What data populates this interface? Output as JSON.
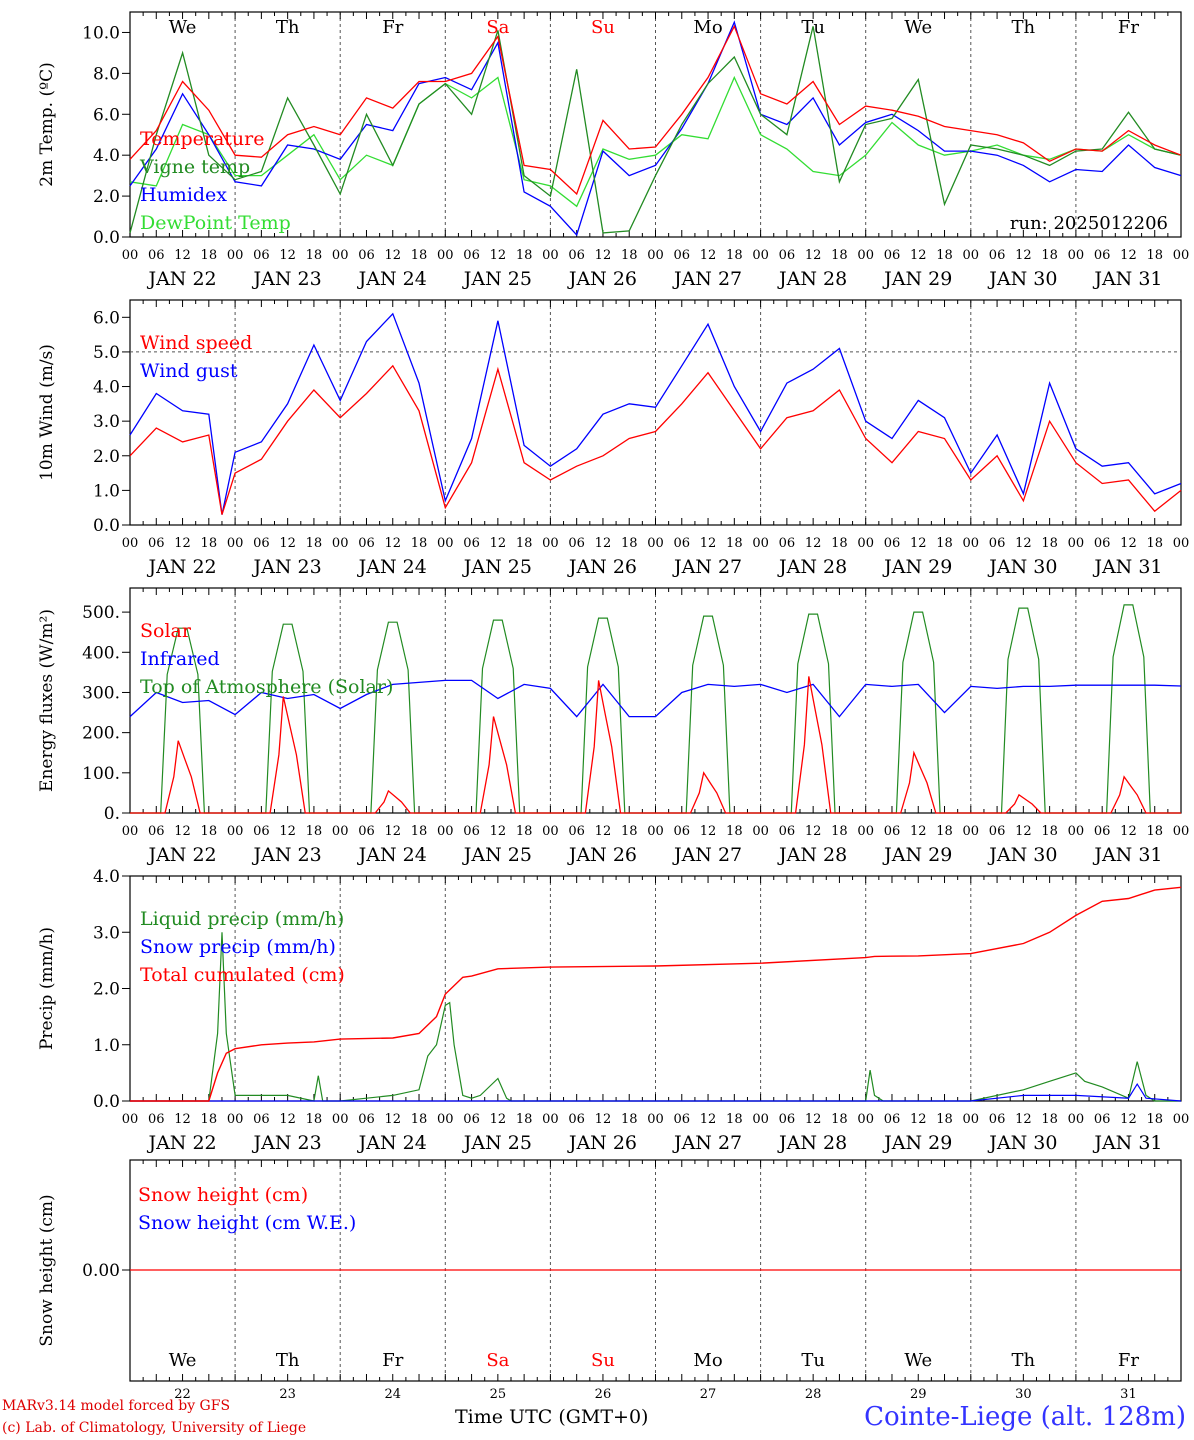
{
  "footer": {
    "model": "MARv3.14 model forced by GFS",
    "credit": "(c) Lab. of Climatology, University of Liege",
    "time_axis": "Time UTC (GMT+0)",
    "station": "Cointe-Liege (alt. 128m)"
  },
  "colors": {
    "red": "#ff0000",
    "green": "#228b22",
    "blue": "#0000ff",
    "lime": "#33dd33",
    "grid": "#555555"
  },
  "chart_data": [
    {
      "type": "line",
      "ylabel": "2m Temp. (ºC)",
      "ylim": [
        0,
        11
      ],
      "yticks": [
        "0.0",
        "2.0",
        "4.0",
        "6.0",
        "8.0",
        "10.0"
      ],
      "day_names": [
        "We",
        "Th",
        "Fr",
        "Sa",
        "Su",
        "Mo",
        "Tu",
        "We",
        "Th",
        "Fr"
      ],
      "weekend_days": [
        3,
        4
      ],
      "dates": [
        "JAN 22",
        "JAN 23",
        "JAN 24",
        "JAN 25",
        "JAN 26",
        "JAN 27",
        "JAN 28",
        "JAN 29",
        "JAN 30",
        "JAN 31"
      ],
      "hour_ticks": [
        "00",
        "06",
        "12",
        "18"
      ],
      "run_label": "run: 2025012206",
      "series": [
        {
          "name": "Temperature",
          "color": "#ff0000",
          "x": [
            0,
            6,
            12,
            18,
            24,
            30,
            36,
            42,
            48,
            54,
            60,
            66,
            72,
            78,
            84,
            90,
            96,
            102,
            108,
            114,
            120,
            126,
            132,
            138,
            144,
            150,
            156,
            162,
            168,
            174,
            180,
            186,
            192,
            198,
            204,
            210,
            216,
            222,
            228,
            234,
            240
          ],
          "values": [
            3.8,
            5.2,
            7.6,
            6.2,
            4.0,
            3.9,
            5.0,
            5.4,
            5.0,
            6.8,
            6.3,
            7.6,
            7.6,
            8.0,
            9.8,
            3.5,
            3.3,
            2.1,
            5.7,
            4.3,
            4.4,
            6.0,
            7.8,
            10.3,
            7.0,
            6.5,
            7.6,
            5.5,
            6.4,
            6.2,
            5.9,
            5.4,
            5.2,
            5.0,
            4.6,
            3.7,
            4.3,
            4.2,
            5.2,
            4.5,
            4.0
          ]
        },
        {
          "name": "Vigne temp",
          "color": "#228b22",
          "x": [
            0,
            6,
            12,
            18,
            24,
            30,
            36,
            42,
            48,
            54,
            60,
            66,
            72,
            78,
            84,
            90,
            96,
            102,
            108,
            114,
            120,
            126,
            132,
            138,
            144,
            150,
            156,
            162,
            168,
            174,
            180,
            186,
            192,
            198,
            204,
            210,
            216,
            222,
            228,
            234,
            240
          ],
          "values": [
            0.2,
            5.0,
            9.0,
            4.0,
            2.8,
            3.2,
            6.8,
            4.5,
            2.1,
            6.0,
            3.5,
            6.5,
            7.5,
            6.0,
            10.1,
            3.0,
            2.0,
            8.2,
            0.2,
            0.3,
            3.0,
            5.5,
            7.5,
            8.8,
            6.0,
            5.0,
            10.3,
            2.7,
            5.5,
            5.8,
            7.7,
            1.6,
            4.5,
            4.3,
            4.0,
            3.5,
            4.2,
            4.3,
            6.1,
            4.3,
            4.0
          ]
        },
        {
          "name": "Humidex",
          "color": "#0000ff",
          "x": [
            0,
            6,
            12,
            18,
            24,
            30,
            36,
            42,
            48,
            54,
            60,
            66,
            72,
            78,
            84,
            90,
            96,
            102,
            108,
            114,
            120,
            126,
            132,
            138,
            144,
            150,
            156,
            162,
            168,
            174,
            180,
            186,
            192,
            198,
            204,
            210,
            216,
            222,
            228,
            234,
            240
          ],
          "values": [
            2.5,
            4.3,
            7.0,
            5.0,
            2.7,
            2.5,
            4.5,
            4.3,
            3.8,
            5.5,
            5.2,
            7.5,
            7.8,
            7.2,
            9.5,
            2.2,
            1.5,
            0.1,
            4.2,
            3.0,
            3.5,
            5.3,
            7.5,
            10.5,
            6.0,
            5.5,
            6.8,
            4.5,
            5.6,
            6.0,
            5.2,
            4.2,
            4.2,
            4.0,
            3.5,
            2.7,
            3.3,
            3.2,
            4.5,
            3.4,
            3.0
          ]
        },
        {
          "name": "DewPoint Temp",
          "color": "#33dd33",
          "x": [
            0,
            6,
            12,
            18,
            24,
            30,
            36,
            42,
            48,
            54,
            60,
            66,
            72,
            78,
            84,
            90,
            96,
            102,
            108,
            114,
            120,
            126,
            132,
            138,
            144,
            150,
            156,
            162,
            168,
            174,
            180,
            186,
            192,
            198,
            204,
            210,
            216,
            222,
            228,
            234,
            240
          ],
          "values": [
            2.7,
            2.5,
            5.5,
            5.0,
            3.0,
            3.0,
            4.0,
            5.0,
            2.8,
            4.0,
            3.5,
            6.5,
            7.5,
            6.8,
            7.8,
            2.8,
            2.5,
            1.5,
            4.3,
            3.8,
            4.0,
            5.0,
            4.8,
            7.8,
            5.0,
            4.3,
            3.2,
            3.0,
            4.0,
            5.6,
            4.5,
            4.0,
            4.2,
            4.5,
            4.0,
            3.8,
            4.3,
            4.2,
            5.0,
            4.3,
            4.0
          ]
        }
      ]
    },
    {
      "type": "line",
      "ylabel": "10m Wind (m/s)",
      "ylim": [
        0,
        6.5
      ],
      "yticks": [
        "0.0",
        "1.0",
        "2.0",
        "3.0",
        "4.0",
        "5.0",
        "6.0"
      ],
      "dates": [
        "JAN 22",
        "JAN 23",
        "JAN 24",
        "JAN 25",
        "JAN 26",
        "JAN 27",
        "JAN 28",
        "JAN 29",
        "JAN 30",
        "JAN 31"
      ],
      "hour_ticks": [
        "00",
        "06",
        "12",
        "18"
      ],
      "hline": 5.0,
      "series": [
        {
          "name": "Wind speed",
          "color": "#ff0000",
          "x": [
            0,
            6,
            12,
            18,
            21,
            24,
            30,
            36,
            42,
            48,
            54,
            60,
            66,
            72,
            78,
            84,
            90,
            96,
            102,
            108,
            114,
            120,
            126,
            132,
            138,
            144,
            150,
            156,
            162,
            168,
            174,
            180,
            186,
            192,
            198,
            204,
            210,
            216,
            222,
            228,
            234,
            240
          ],
          "values": [
            2.0,
            2.8,
            2.4,
            2.6,
            0.3,
            1.5,
            1.9,
            3.0,
            3.9,
            3.1,
            3.8,
            4.6,
            3.3,
            0.5,
            1.8,
            4.5,
            1.8,
            1.3,
            1.7,
            2.0,
            2.5,
            2.7,
            3.5,
            4.4,
            3.3,
            2.2,
            3.1,
            3.3,
            3.9,
            2.5,
            1.8,
            2.7,
            2.5,
            1.3,
            2.0,
            0.7,
            3.0,
            1.8,
            1.2,
            1.3,
            0.4,
            1.0
          ]
        },
        {
          "name": "Wind gust",
          "color": "#0000ff",
          "x": [
            0,
            6,
            12,
            18,
            21,
            24,
            30,
            36,
            42,
            48,
            54,
            60,
            66,
            72,
            78,
            84,
            90,
            96,
            102,
            108,
            114,
            120,
            126,
            132,
            138,
            144,
            150,
            156,
            162,
            168,
            174,
            180,
            186,
            192,
            198,
            204,
            210,
            216,
            222,
            228,
            234,
            240
          ],
          "values": [
            2.6,
            3.8,
            3.3,
            3.2,
            0.3,
            2.1,
            2.4,
            3.5,
            5.2,
            3.6,
            5.3,
            6.1,
            4.1,
            0.7,
            2.5,
            5.9,
            2.3,
            1.7,
            2.2,
            3.2,
            3.5,
            3.4,
            4.6,
            5.8,
            4.0,
            2.7,
            4.1,
            4.5,
            5.1,
            3.0,
            2.5,
            3.6,
            3.1,
            1.5,
            2.6,
            0.9,
            4.1,
            2.2,
            1.7,
            1.8,
            0.9,
            1.2
          ]
        }
      ]
    },
    {
      "type": "line",
      "ylabel": "Energy fluxes (W/m²)",
      "ylim": [
        0,
        560
      ],
      "yticks": [
        "0.",
        "100.",
        "200.",
        "300.",
        "400.",
        "500."
      ],
      "dates": [
        "JAN 22",
        "JAN 23",
        "JAN 24",
        "JAN 25",
        "JAN 26",
        "JAN 27",
        "JAN 28",
        "JAN 29",
        "JAN 30",
        "JAN 31"
      ],
      "hour_ticks": [
        "00",
        "06",
        "12",
        "18"
      ],
      "top_of_atmosphere_peaks": [
        460,
        470,
        475,
        480,
        485,
        490,
        495,
        500,
        510,
        518
      ],
      "solar_peaks": [
        180,
        290,
        55,
        240,
        330,
        100,
        340,
        150,
        45,
        90
      ],
      "series": [
        {
          "name": "Solar",
          "color": "#ff0000"
        },
        {
          "name": "Infrared",
          "color": "#0000ff",
          "x": [
            0,
            6,
            12,
            18,
            24,
            30,
            36,
            42,
            48,
            54,
            60,
            66,
            72,
            78,
            84,
            90,
            96,
            102,
            108,
            114,
            120,
            126,
            132,
            138,
            144,
            150,
            156,
            162,
            168,
            174,
            180,
            186,
            192,
            198,
            204,
            210,
            216,
            222,
            228,
            234,
            240
          ],
          "values": [
            240,
            300,
            275,
            280,
            245,
            300,
            285,
            295,
            260,
            295,
            320,
            325,
            330,
            330,
            285,
            320,
            310,
            240,
            320,
            240,
            240,
            300,
            320,
            315,
            320,
            300,
            320,
            240,
            320,
            315,
            320,
            250,
            315,
            310,
            315,
            315,
            318,
            318,
            318,
            318,
            316
          ]
        },
        {
          "name": "Top of Atmosphere (Solar)",
          "color": "#228b22"
        }
      ]
    },
    {
      "type": "line",
      "ylabel": "Precip (mm/h)",
      "ylim": [
        0,
        4.0
      ],
      "yticks": [
        "0.0",
        "1.0",
        "2.0",
        "3.0",
        "4.0"
      ],
      "dates": [
        "JAN 22",
        "JAN 23",
        "JAN 24",
        "JAN 25",
        "JAN 26",
        "JAN 27",
        "JAN 28",
        "JAN 29",
        "JAN 30",
        "JAN 31"
      ],
      "hour_ticks": [
        "00",
        "06",
        "12",
        "18"
      ],
      "series": [
        {
          "name": "Liquid precip (mm/h)",
          "color": "#228b22",
          "x": [
            0,
            12,
            18,
            20,
            21,
            22,
            24,
            30,
            36,
            42,
            43,
            44,
            48,
            54,
            60,
            66,
            68,
            70,
            72,
            73,
            74,
            76,
            78,
            80,
            84,
            86,
            87,
            88,
            96,
            108,
            120,
            132,
            144,
            168,
            169,
            170,
            172,
            180,
            192,
            204,
            210,
            216,
            218,
            222,
            228,
            230,
            232,
            234,
            240
          ],
          "values": [
            0,
            0,
            0,
            1.2,
            3.0,
            1.2,
            0.1,
            0.1,
            0.1,
            0,
            0.45,
            0,
            0,
            0.05,
            0.1,
            0.2,
            0.8,
            1.0,
            1.7,
            1.75,
            1.0,
            0.1,
            0.05,
            0.1,
            0.4,
            0.05,
            0,
            0,
            0,
            0,
            0,
            0,
            0,
            0,
            0.55,
            0.1,
            0,
            0,
            0,
            0.2,
            0.35,
            0.5,
            0.35,
            0.25,
            0.05,
            0.7,
            0.1,
            0,
            0
          ]
        },
        {
          "name": "Snow precip (mm/h)",
          "color": "#0000ff",
          "x": [
            0,
            24,
            48,
            72,
            96,
            120,
            144,
            168,
            192,
            204,
            216,
            228,
            230,
            232,
            240
          ],
          "values": [
            0,
            0,
            0,
            0,
            0,
            0,
            0,
            0,
            0,
            0.1,
            0.1,
            0.05,
            0.3,
            0.05,
            0
          ]
        },
        {
          "name": "Total cumulated (cm)",
          "color": "#ff0000",
          "x": [
            0,
            18,
            20,
            22,
            24,
            30,
            36,
            42,
            48,
            60,
            66,
            70,
            72,
            76,
            78,
            84,
            96,
            120,
            144,
            168,
            170,
            180,
            192,
            204,
            210,
            216,
            222,
            228,
            234,
            240
          ],
          "values": [
            0,
            0,
            0.5,
            0.85,
            0.93,
            1.0,
            1.03,
            1.05,
            1.1,
            1.12,
            1.2,
            1.5,
            1.9,
            2.2,
            2.22,
            2.35,
            2.38,
            2.4,
            2.45,
            2.55,
            2.57,
            2.58,
            2.62,
            2.8,
            3.0,
            3.3,
            3.55,
            3.6,
            3.75,
            3.8
          ]
        }
      ]
    },
    {
      "type": "line",
      "ylabel": "Snow height (cm)",
      "yticks": [
        "0.00"
      ],
      "day_names": [
        "We",
        "Th",
        "Fr",
        "Sa",
        "Su",
        "Mo",
        "Tu",
        "We",
        "Th",
        "Fr"
      ],
      "weekend_days": [
        3,
        4
      ],
      "day_numbers": [
        "22",
        "23",
        "24",
        "25",
        "26",
        "27",
        "28",
        "29",
        "30",
        "31"
      ],
      "series": [
        {
          "name": "Snow height (cm)",
          "color": "#ff0000",
          "x": [
            0,
            240
          ],
          "values": [
            0,
            0
          ]
        },
        {
          "name": "Snow height (cm W.E.)",
          "color": "#0000ff"
        }
      ]
    }
  ]
}
